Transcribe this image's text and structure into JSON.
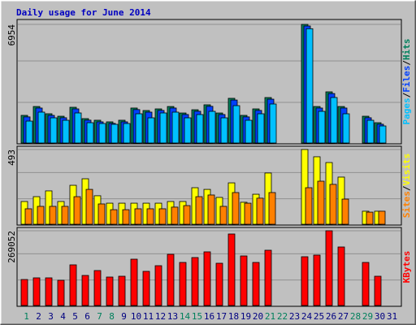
{
  "chart_data": {
    "type": "bar",
    "title": "Daily usage for June 2014",
    "categories": [
      "1",
      "2",
      "3",
      "4",
      "5",
      "6",
      "7",
      "8",
      "9",
      "10",
      "11",
      "12",
      "13",
      "14",
      "15",
      "16",
      "17",
      "18",
      "19",
      "20",
      "21",
      "22",
      "23",
      "24",
      "25",
      "26",
      "27",
      "28",
      "29",
      "30",
      "31"
    ],
    "label_colors": [
      "#00805c",
      "#000080",
      "#000080",
      "#000080",
      "#000080",
      "#000080",
      "#00805c",
      "#00805c",
      "#000080",
      "#000080",
      "#000080",
      "#000080",
      "#000080",
      "#00805c",
      "#00805c",
      "#000080",
      "#000080",
      "#000080",
      "#000080",
      "#000080",
      "#00805c",
      "#00805c",
      "#000080",
      "#000080",
      "#000080",
      "#000080",
      "#000080",
      "#00805c",
      "#00805c",
      "#000080",
      "#000080"
    ],
    "legend_separator": "/",
    "panels": [
      {
        "ylim": [
          0,
          6954
        ],
        "yticks": [
          6954
        ],
        "series": [
          {
            "name": "Hits",
            "color": "#00805c",
            "values": [
              1620,
              2140,
              1715,
              1570,
              2095,
              1430,
              1335,
              1240,
              1335,
              2050,
              1905,
              2000,
              2140,
              1760,
              1950,
              2240,
              1760,
              2620,
              1620,
              2000,
              2665,
              null,
              null,
              6954,
              2140,
              3000,
              2140,
              null,
              1570,
              1190,
              null
            ]
          },
          {
            "name": "Files",
            "color": "#0040ff",
            "values": [
              1530,
              2050,
              1620,
              1480,
              2000,
              1340,
              1240,
              1150,
              1240,
              1960,
              1810,
              1910,
              2050,
              1670,
              1860,
              2150,
              1670,
              2520,
              1530,
              1910,
              2570,
              null,
              null,
              6860,
              2050,
              2900,
              2050,
              null,
              1480,
              1100,
              null
            ]
          },
          {
            "name": "Pages",
            "color": "#00c0ff",
            "values": [
              1285,
              1810,
              1476,
              1333,
              1762,
              1190,
              1143,
              1095,
              1143,
              1714,
              1476,
              1762,
              1810,
              1476,
              1667,
              1857,
              1476,
              2190,
              1333,
              1714,
              2286,
              null,
              null,
              6700,
              1857,
              2667,
              1714,
              null,
              1333,
              1000,
              null
            ]
          }
        ]
      },
      {
        "ylim": [
          0,
          493
        ],
        "yticks": [
          493
        ],
        "series": [
          {
            "name": "Visits",
            "color": "#ffff00",
            "values": [
              150,
              182,
              220,
              150,
              257,
              300,
              188,
              139,
              139,
              139,
              139,
              139,
              150,
              150,
              241,
              230,
              177,
              273,
              145,
              198,
              338,
              null,
              null,
              493,
              445,
              407,
              311,
              null,
              86,
              86,
              null
            ]
          },
          {
            "name": "Sites",
            "color": "#ff8000",
            "values": [
              102,
              118,
              118,
              118,
              182,
              230,
              134,
              96,
              96,
              102,
              102,
              102,
              113,
              123,
              182,
              193,
              118,
              209,
              139,
              172,
              209,
              null,
              null,
              241,
              284,
              263,
              166,
              null,
              80,
              86,
              null
            ]
          }
        ]
      },
      {
        "ylim": [
          0,
          269052
        ],
        "yticks": [
          269052
        ],
        "series": [
          {
            "name": "KBytes",
            "color": "#ff0000",
            "values": [
              93600,
              99500,
              99500,
              90700,
              146300,
              108200,
              125800,
              102400,
              105300,
              166700,
              122900,
              143300,
              184300,
              155000,
              172600,
              193100,
              152100,
              257400,
              178400,
              155000,
              198900,
              null,
              null,
              175500,
              181400,
              269052,
              210600,
              null,
              155000,
              105300,
              null
            ]
          }
        ]
      }
    ]
  }
}
